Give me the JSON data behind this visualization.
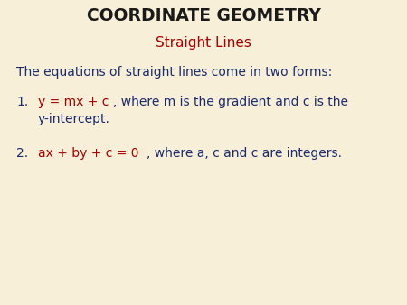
{
  "bg_color": "#f7efd8",
  "title": "COORDINATE GEOMETRY",
  "title_color": "#1a1a1a",
  "title_fontsize": 13.5,
  "subtitle": "Straight Lines",
  "subtitle_color": "#aa0000",
  "subtitle_fontsize": 11,
  "body_color": "#1a2a6b",
  "equation_color": "#aa0000",
  "body_fontsize": 10,
  "line1": "The equations of straight lines come in two forms:",
  "item1_num": "1.",
  "item1_eq": "y = mx + c",
  "item1_rest": ", where m is the gradient and c is the",
  "item1_cont": "y-intercept.",
  "item2_num": "2.",
  "item2_eq": "ax + by + c = 0",
  "item2_rest": ", where a, c and c are integers."
}
